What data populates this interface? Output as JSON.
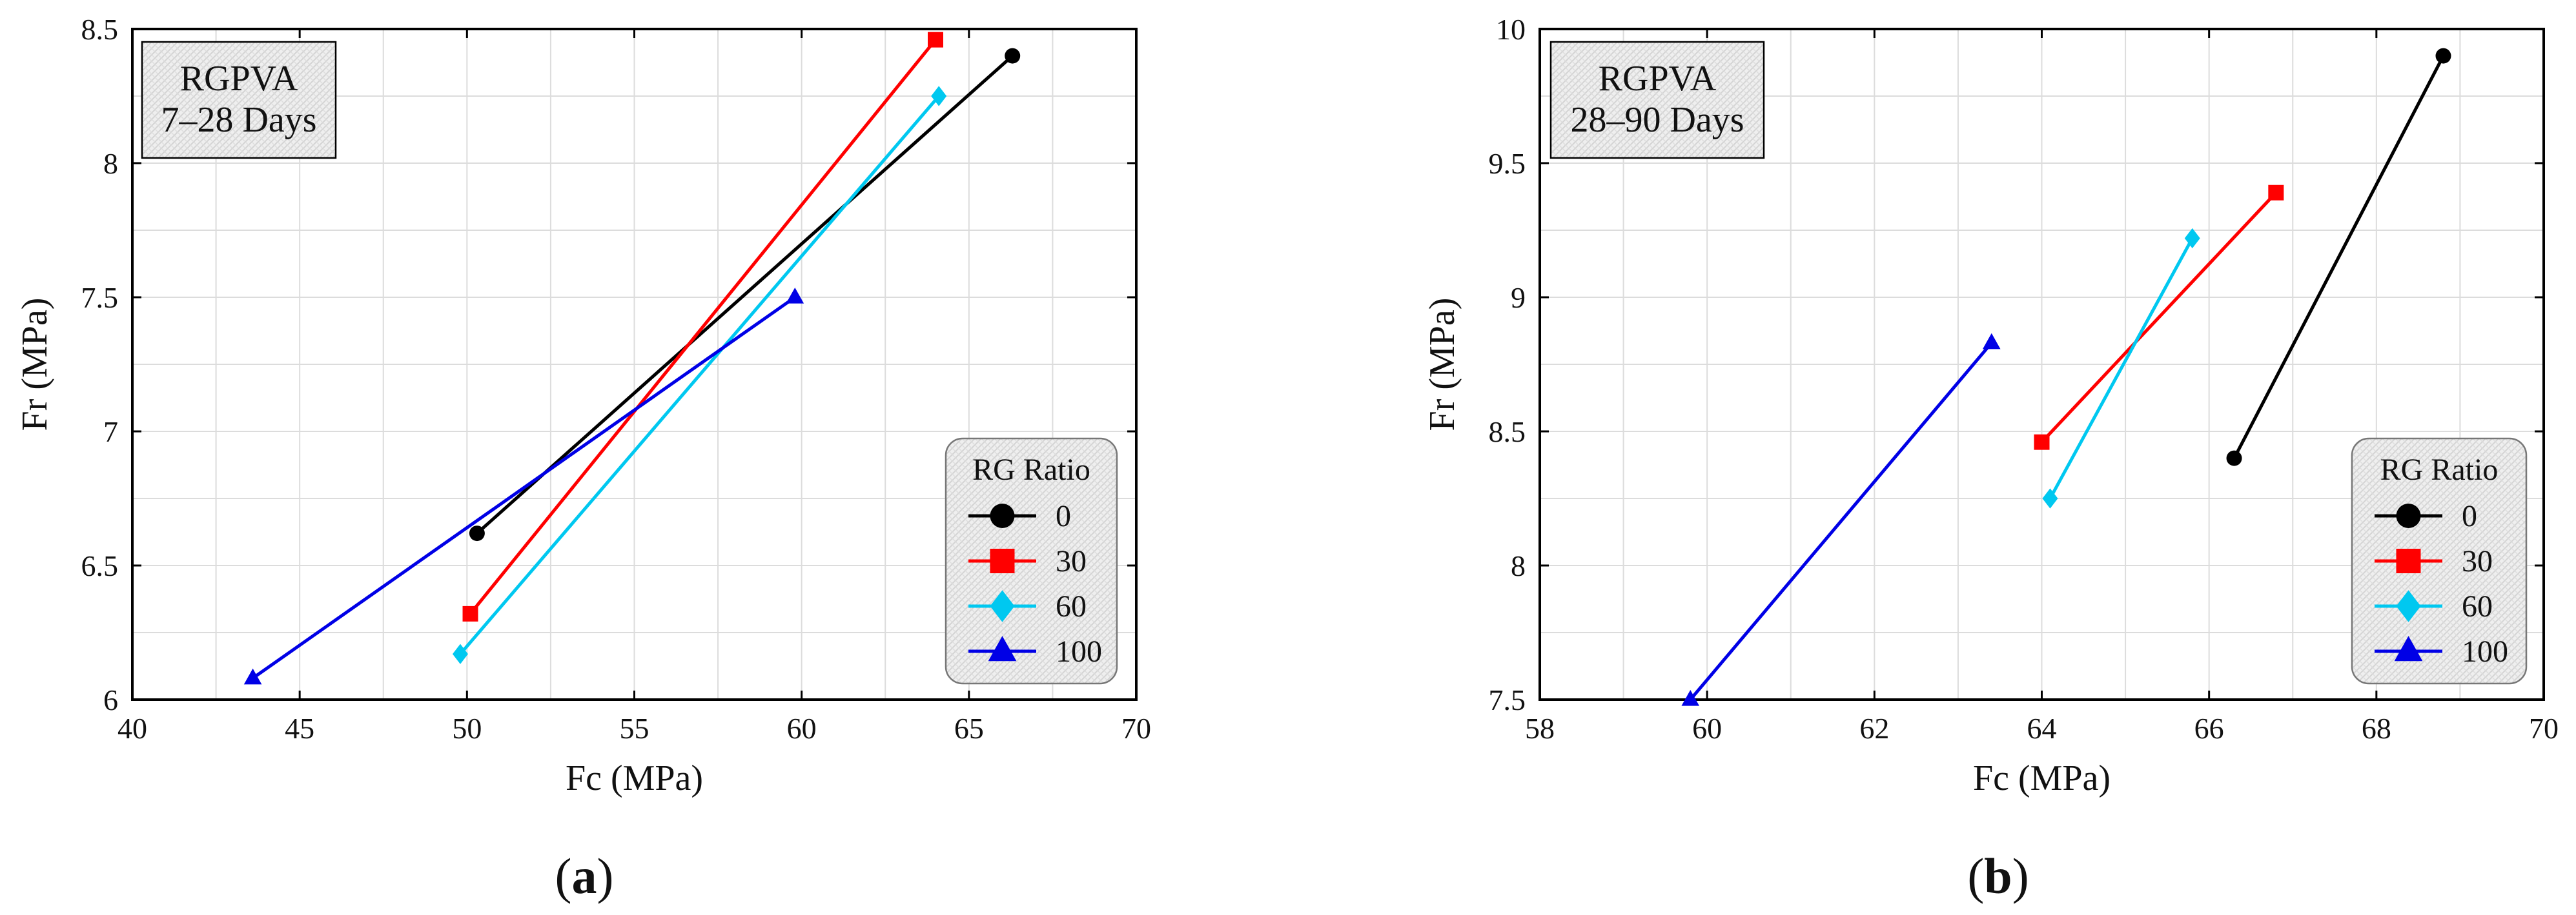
{
  "chart_data": [
    {
      "type": "line",
      "panel_label": "(a)",
      "annotation": [
        "RGPVA",
        "7–28 Days"
      ],
      "xlabel": "Fc (MPa)",
      "ylabel": "Fr (MPa)",
      "xlim": [
        40,
        70
      ],
      "ylim": [
        6,
        8.5
      ],
      "xticks": [
        40,
        45,
        50,
        55,
        60,
        65,
        70
      ],
      "yticks": [
        6,
        6.5,
        7,
        7.5,
        8,
        8.5
      ],
      "grid": true,
      "legend": {
        "title": "RG Ratio",
        "position": "bottom-right"
      },
      "series": [
        {
          "name": "0",
          "color": "#000000",
          "marker": "circle",
          "points": [
            [
              50.3,
              6.62
            ],
            [
              66.3,
              8.4
            ]
          ]
        },
        {
          "name": "30",
          "color": "#ff0000",
          "marker": "square",
          "points": [
            [
              50.1,
              6.32
            ],
            [
              64.0,
              8.46
            ]
          ]
        },
        {
          "name": "60",
          "color": "#00c8f0",
          "marker": "diamond",
          "points": [
            [
              49.8,
              6.17
            ],
            [
              64.1,
              8.25
            ]
          ]
        },
        {
          "name": "100",
          "color": "#0000e6",
          "marker": "triangle",
          "points": [
            [
              43.6,
              6.08
            ],
            [
              59.8,
              7.5
            ]
          ]
        }
      ]
    },
    {
      "type": "line",
      "panel_label": "(b)",
      "annotation": [
        "RGPVA",
        "28–90 Days"
      ],
      "xlabel": "Fc (MPa)",
      "ylabel": "Fr (MPa)",
      "xlim": [
        58,
        70
      ],
      "ylim": [
        7.5,
        10
      ],
      "xticks": [
        58,
        60,
        62,
        64,
        66,
        68,
        70
      ],
      "yticks": [
        7.5,
        8,
        8.5,
        9,
        9.5,
        10
      ],
      "grid": true,
      "legend": {
        "title": "RG Ratio",
        "position": "bottom-right"
      },
      "series": [
        {
          "name": "0",
          "color": "#000000",
          "marker": "circle",
          "points": [
            [
              66.3,
              8.4
            ],
            [
              68.8,
              9.9
            ]
          ]
        },
        {
          "name": "30",
          "color": "#ff0000",
          "marker": "square",
          "points": [
            [
              64.0,
              8.46
            ],
            [
              66.8,
              9.39
            ]
          ]
        },
        {
          "name": "60",
          "color": "#00c8f0",
          "marker": "diamond",
          "points": [
            [
              64.1,
              8.25
            ],
            [
              65.8,
              9.22
            ]
          ]
        },
        {
          "name": "100",
          "color": "#0000e6",
          "marker": "triangle",
          "points": [
            [
              59.8,
              7.5
            ],
            [
              63.4,
              8.83
            ]
          ]
        }
      ]
    }
  ]
}
